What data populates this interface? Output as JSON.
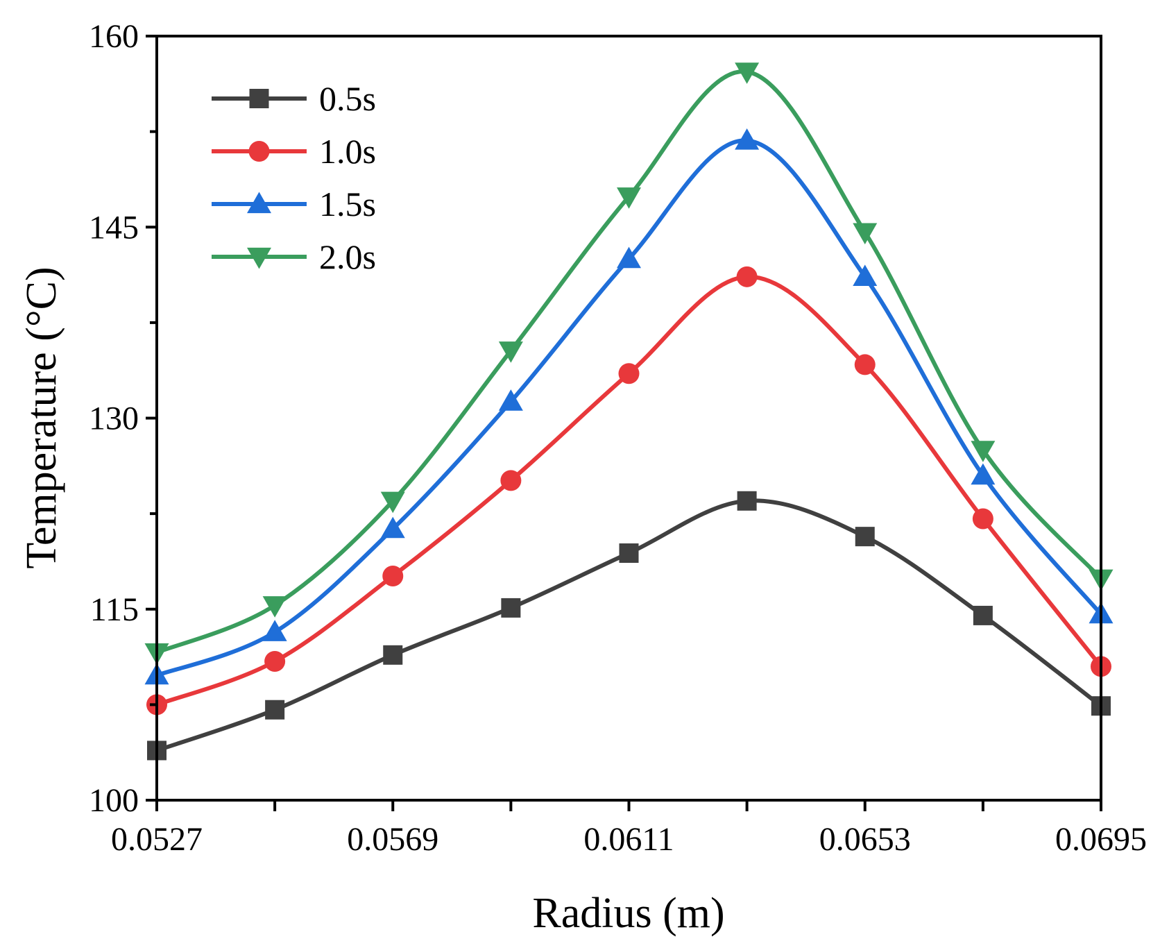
{
  "chart_data": {
    "type": "line",
    "xlabel": "Radius (m)",
    "ylabel": "Temperature (°C)",
    "x": [
      0.0527,
      0.0548,
      0.0569,
      0.059,
      0.0611,
      0.0632,
      0.0653,
      0.0674,
      0.0695
    ],
    "xticks": [
      0.0527,
      0.0548,
      0.0569,
      0.059,
      0.0611,
      0.0632,
      0.0653,
      0.0674,
      0.0695
    ],
    "xtick_labels": [
      "0.0527",
      "0.0569",
      "0.0611",
      "0.0653",
      "0.0695"
    ],
    "xtick_label_values": [
      0.0527,
      0.0569,
      0.0611,
      0.0653,
      0.0695
    ],
    "xlim": [
      0.0527,
      0.0695
    ],
    "ylim": [
      100,
      160
    ],
    "yticks_major": [
      100,
      115,
      130,
      145,
      160
    ],
    "ytick_labels": [
      "100",
      "115",
      "130",
      "145",
      "160"
    ],
    "grid": false,
    "legend_position": "top-left",
    "series": [
      {
        "name": "0.5s",
        "color": "#404040",
        "marker": "square",
        "values": [
          103.9,
          107.1,
          111.4,
          115.1,
          119.4,
          123.5,
          120.7,
          114.5,
          107.4
        ]
      },
      {
        "name": "1.0s",
        "color": "#e8383b",
        "marker": "circle",
        "values": [
          107.5,
          110.9,
          117.6,
          125.1,
          133.5,
          141.1,
          134.2,
          122.1,
          110.5
        ]
      },
      {
        "name": "1.5s",
        "color": "#1f6ed8",
        "marker": "triangle-up",
        "values": [
          109.8,
          113.2,
          121.3,
          131.3,
          142.5,
          151.8,
          141.1,
          125.5,
          114.6
        ]
      },
      {
        "name": "2.0s",
        "color": "#3a9d5d",
        "marker": "triangle-down",
        "values": [
          111.6,
          115.3,
          123.5,
          135.3,
          147.4,
          157.2,
          144.6,
          127.5,
          117.4
        ]
      }
    ]
  }
}
